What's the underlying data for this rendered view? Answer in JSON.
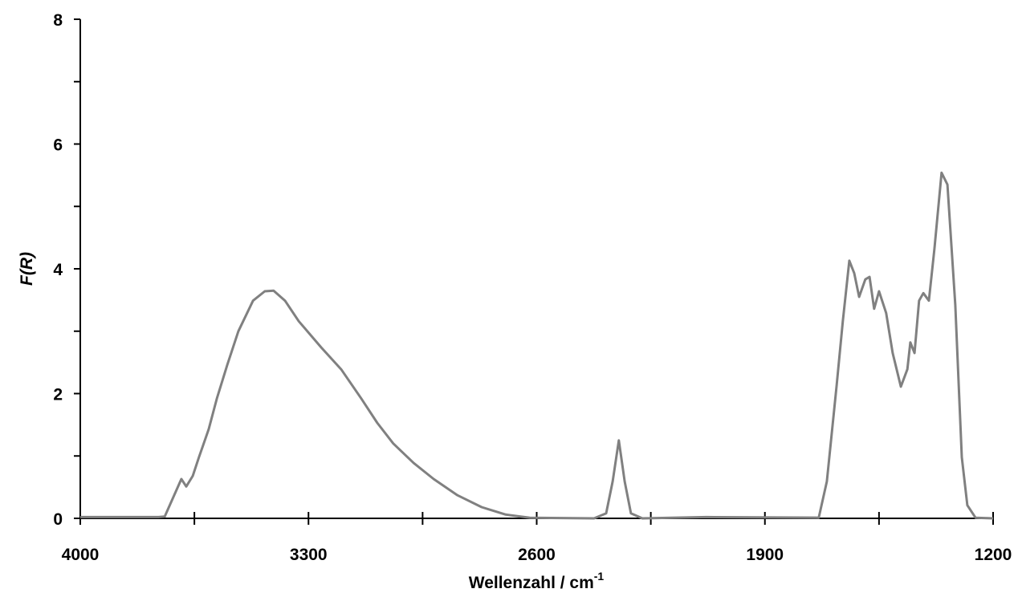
{
  "chart_data": {
    "type": "line",
    "xlabel": "Wellenzahl / cm",
    "xlabel_superscript": "-1",
    "ylabel": "F(R)",
    "x": [
      4000,
      3760,
      3741,
      3690,
      3675,
      3655,
      3636,
      3606,
      3581,
      3549,
      3515,
      3470,
      3434,
      3407,
      3372,
      3330,
      3261,
      3200,
      3138,
      3089,
      3040,
      2978,
      2916,
      2843,
      2769,
      2695,
      2621,
      2424,
      2387,
      2367,
      2348,
      2330,
      2311,
      2276,
      2079,
      1735,
      1710,
      1680,
      1661,
      1641,
      1626,
      1611,
      1592,
      1579,
      1565,
      1550,
      1528,
      1508,
      1483,
      1463,
      1454,
      1441,
      1427,
      1414,
      1397,
      1380,
      1358,
      1340,
      1316,
      1296,
      1279,
      1254,
      1200
    ],
    "values": [
      0.02,
      0.02,
      0.03,
      0.63,
      0.51,
      0.68,
      0.98,
      1.43,
      1.92,
      2.46,
      3.0,
      3.49,
      3.64,
      3.65,
      3.49,
      3.16,
      2.74,
      2.39,
      1.92,
      1.53,
      1.2,
      0.89,
      0.63,
      0.37,
      0.18,
      0.06,
      0.01,
      0,
      0.08,
      0.59,
      1.25,
      0.59,
      0.08,
      0,
      0.02,
      0.01,
      0.59,
      2.13,
      3.16,
      4.13,
      3.93,
      3.55,
      3.83,
      3.87,
      3.36,
      3.64,
      3.29,
      2.65,
      2.11,
      2.39,
      2.82,
      2.65,
      3.49,
      3.61,
      3.49,
      4.32,
      5.54,
      5.35,
      3.42,
      0.98,
      0.21,
      0.01,
      0
    ],
    "color": "#808080",
    "xlim": [
      4000,
      1200
    ],
    "xticks": [
      4000,
      3300,
      2600,
      1900,
      1200
    ],
    "xticks_minor": [
      3650,
      2950,
      2250,
      1550
    ],
    "ylim": [
      0,
      8
    ],
    "yticks": [
      0,
      2,
      4,
      6,
      8
    ],
    "yticks_minor": [
      1,
      3,
      5,
      7
    ]
  }
}
